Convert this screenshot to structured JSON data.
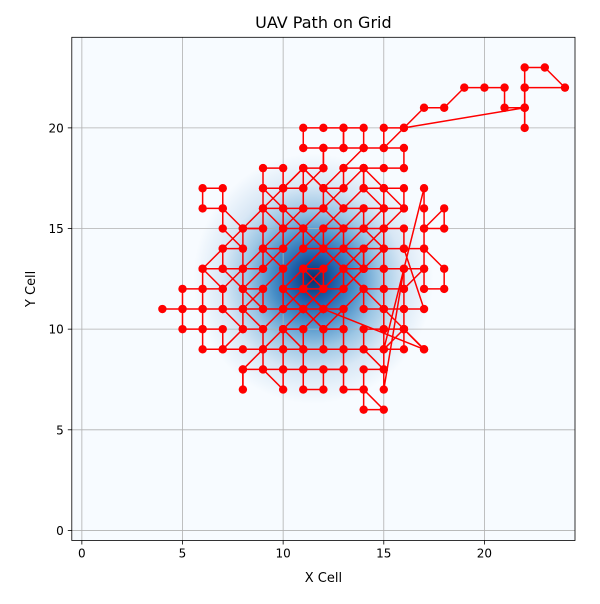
{
  "chart_data": {
    "type": "scatter",
    "title": "UAV Path on Grid",
    "xlabel": "X Cell",
    "ylabel": "Y Cell",
    "xlim": [
      -0.5,
      24.5
    ],
    "ylim": [
      -0.5,
      24.5
    ],
    "x_ticks": [
      0,
      5,
      10,
      15,
      20
    ],
    "y_ticks": [
      0,
      5,
      10,
      15,
      20
    ],
    "grid": true,
    "background": "density heatmap (Blues colormap) centred near cell (11.5, 12.5)",
    "heatmap_center": [
      11.5,
      12.5
    ],
    "colors": {
      "path": "#ff0000",
      "grid": "#b0b0b0",
      "heatmap_low": "#f7fbff",
      "heatmap_high": "#08306b"
    },
    "series": [
      {
        "points": [
          [
            4,
            11
          ],
          [
            5,
            11
          ],
          [
            5,
            12
          ],
          [
            6,
            12
          ],
          [
            6,
            13
          ],
          [
            7,
            13
          ],
          [
            7,
            14
          ],
          [
            8,
            14
          ],
          [
            8,
            15
          ],
          [
            9,
            15
          ],
          [
            9,
            16
          ],
          [
            10,
            16
          ],
          [
            10,
            17
          ],
          [
            11,
            17
          ],
          [
            11,
            18
          ],
          [
            12,
            18
          ],
          [
            12,
            19
          ],
          [
            13,
            19
          ],
          [
            13,
            20
          ],
          [
            14,
            20
          ],
          [
            14,
            19
          ],
          [
            15,
            19
          ],
          [
            15,
            20
          ],
          [
            16,
            20
          ],
          [
            17,
            21
          ],
          [
            18,
            21
          ],
          [
            19,
            22
          ],
          [
            20,
            22
          ],
          [
            21,
            22
          ],
          [
            21,
            21
          ],
          [
            22,
            21
          ],
          [
            22,
            22
          ],
          [
            22,
            23
          ],
          [
            23,
            23
          ],
          [
            24,
            22
          ],
          [
            22,
            22
          ],
          [
            22,
            21
          ],
          [
            22,
            20
          ],
          [
            22,
            21
          ],
          [
            16,
            20
          ],
          [
            15,
            19
          ],
          [
            16,
            19
          ],
          [
            16,
            18
          ],
          [
            15,
            18
          ],
          [
            14,
            18
          ],
          [
            14,
            17
          ],
          [
            15,
            17
          ],
          [
            16,
            17
          ],
          [
            16,
            16
          ],
          [
            15,
            16
          ],
          [
            15,
            15
          ],
          [
            16,
            15
          ],
          [
            16,
            14
          ],
          [
            15,
            14
          ],
          [
            15,
            13
          ],
          [
            16,
            13
          ],
          [
            16,
            12
          ],
          [
            15,
            12
          ],
          [
            15,
            11
          ],
          [
            16,
            11
          ],
          [
            16,
            10
          ],
          [
            15,
            10
          ],
          [
            15,
            9
          ],
          [
            16,
            9
          ],
          [
            16,
            10
          ],
          [
            17,
            9
          ],
          [
            16,
            10
          ],
          [
            15,
            9
          ],
          [
            17,
            17
          ],
          [
            17,
            16
          ],
          [
            17,
            15
          ],
          [
            18,
            15
          ],
          [
            18,
            16
          ],
          [
            17,
            15
          ],
          [
            17,
            14
          ],
          [
            18,
            13
          ],
          [
            18,
            12
          ],
          [
            17,
            12
          ],
          [
            17,
            13
          ],
          [
            17,
            14
          ],
          [
            16,
            14
          ],
          [
            17,
            11
          ],
          [
            16,
            11
          ],
          [
            16,
            12
          ],
          [
            17,
            13
          ],
          [
            16,
            13
          ],
          [
            15,
            7
          ],
          [
            15,
            8
          ],
          [
            14,
            8
          ],
          [
            14,
            7
          ],
          [
            15,
            6
          ],
          [
            14,
            6
          ],
          [
            14,
            7
          ],
          [
            13,
            7
          ],
          [
            13,
            8
          ],
          [
            12,
            8
          ],
          [
            12,
            7
          ],
          [
            11,
            7
          ],
          [
            11,
            8
          ],
          [
            10,
            8
          ],
          [
            10,
            7
          ],
          [
            9,
            8
          ],
          [
            8,
            8
          ],
          [
            8,
            7
          ],
          [
            8,
            8
          ],
          [
            9,
            9
          ],
          [
            8,
            9
          ],
          [
            7,
            9
          ],
          [
            6,
            9
          ],
          [
            6,
            10
          ],
          [
            5,
            10
          ],
          [
            5,
            11
          ],
          [
            6,
            11
          ],
          [
            6,
            10
          ],
          [
            7,
            10
          ],
          [
            7,
            9
          ],
          [
            8,
            10
          ],
          [
            7,
            11
          ],
          [
            6,
            11
          ],
          [
            6,
            12
          ],
          [
            7,
            12
          ],
          [
            7,
            11
          ],
          [
            8,
            11
          ],
          [
            8,
            12
          ],
          [
            7,
            13
          ],
          [
            8,
            13
          ],
          [
            8,
            14
          ],
          [
            7,
            15
          ],
          [
            7,
            16
          ],
          [
            6,
            16
          ],
          [
            6,
            17
          ],
          [
            7,
            17
          ],
          [
            7,
            16
          ],
          [
            8,
            15
          ],
          [
            9,
            15
          ],
          [
            9,
            14
          ],
          [
            10,
            14
          ],
          [
            10,
            15
          ],
          [
            9,
            16
          ],
          [
            9,
            17
          ],
          [
            9,
            18
          ],
          [
            10,
            18
          ],
          [
            10,
            17
          ],
          [
            11,
            17
          ],
          [
            11,
            16
          ],
          [
            12,
            16
          ],
          [
            12,
            17
          ],
          [
            13,
            17
          ],
          [
            13,
            18
          ],
          [
            14,
            18
          ],
          [
            14,
            17
          ],
          [
            15,
            17
          ],
          [
            15,
            16
          ],
          [
            14,
            16
          ],
          [
            14,
            15
          ],
          [
            15,
            15
          ],
          [
            15,
            14
          ],
          [
            14,
            14
          ],
          [
            14,
            13
          ],
          [
            15,
            13
          ],
          [
            15,
            12
          ],
          [
            14,
            12
          ],
          [
            14,
            11
          ],
          [
            15,
            11
          ],
          [
            15,
            10
          ],
          [
            14,
            10
          ],
          [
            14,
            9
          ],
          [
            15,
            9
          ],
          [
            15,
            8
          ],
          [
            14,
            9
          ],
          [
            13,
            9
          ],
          [
            13,
            10
          ],
          [
            12,
            10
          ],
          [
            12,
            9
          ],
          [
            11,
            9
          ],
          [
            11,
            10
          ],
          [
            10,
            10
          ],
          [
            10,
            9
          ],
          [
            9,
            9
          ],
          [
            9,
            10
          ],
          [
            8,
            10
          ],
          [
            8,
            11
          ],
          [
            9,
            11
          ],
          [
            9,
            12
          ],
          [
            8,
            12
          ],
          [
            8,
            13
          ],
          [
            9,
            13
          ],
          [
            9,
            14
          ],
          [
            10,
            13
          ],
          [
            10,
            12
          ],
          [
            11,
            12
          ],
          [
            11,
            13
          ],
          [
            12,
            13
          ],
          [
            12,
            12
          ],
          [
            13,
            12
          ],
          [
            13,
            13
          ],
          [
            14,
            13
          ],
          [
            14,
            14
          ],
          [
            13,
            14
          ],
          [
            13,
            15
          ],
          [
            12,
            15
          ],
          [
            12,
            14
          ],
          [
            11,
            14
          ],
          [
            11,
            15
          ],
          [
            10,
            15
          ],
          [
            10,
            16
          ],
          [
            11,
            16
          ],
          [
            11,
            17
          ],
          [
            12,
            18
          ],
          [
            12,
            19
          ],
          [
            11,
            19
          ],
          [
            11,
            20
          ],
          [
            12,
            20
          ],
          [
            13,
            20
          ],
          [
            13,
            19
          ],
          [
            14,
            19
          ],
          [
            13,
            18
          ],
          [
            12,
            17
          ],
          [
            11,
            18
          ],
          [
            10,
            17
          ],
          [
            9,
            17
          ],
          [
            10,
            16
          ],
          [
            11,
            15
          ],
          [
            12,
            14
          ],
          [
            13,
            13
          ],
          [
            14,
            12
          ],
          [
            15,
            11
          ],
          [
            16,
            10
          ],
          [
            17,
            9
          ],
          [
            12,
            11
          ],
          [
            13,
            11
          ],
          [
            13,
            10
          ],
          [
            12,
            10
          ],
          [
            11,
            11
          ],
          [
            10,
            11
          ],
          [
            10,
            12
          ],
          [
            11,
            12
          ],
          [
            12,
            11
          ],
          [
            11,
            10
          ],
          [
            10,
            10
          ],
          [
            11,
            9
          ],
          [
            12,
            9
          ],
          [
            13,
            9
          ],
          [
            13,
            8
          ],
          [
            12,
            8
          ],
          [
            11,
            8
          ],
          [
            11,
            9
          ],
          [
            10,
            9
          ],
          [
            10,
            8
          ],
          [
            9,
            8
          ],
          [
            9,
            9
          ],
          [
            10,
            10
          ],
          [
            11,
            11
          ],
          [
            12,
            12
          ],
          [
            13,
            13
          ],
          [
            14,
            14
          ],
          [
            15,
            15
          ],
          [
            16,
            16
          ],
          [
            15,
            17
          ],
          [
            14,
            18
          ],
          [
            13,
            17
          ],
          [
            12,
            16
          ],
          [
            11,
            15
          ],
          [
            10,
            14
          ],
          [
            9,
            13
          ],
          [
            8,
            12
          ],
          [
            9,
            11
          ],
          [
            10,
            11
          ],
          [
            11,
            12
          ],
          [
            12,
            13
          ],
          [
            13,
            14
          ],
          [
            14,
            15
          ],
          [
            15,
            16
          ],
          [
            14,
            17
          ],
          [
            13,
            16
          ],
          [
            12,
            15
          ],
          [
            11,
            14
          ],
          [
            10,
            13
          ],
          [
            9,
            12
          ],
          [
            8,
            11
          ],
          [
            9,
            10
          ],
          [
            10,
            11
          ],
          [
            11,
            11
          ],
          [
            12,
            11
          ],
          [
            13,
            12
          ],
          [
            14,
            13
          ],
          [
            15,
            14
          ],
          [
            14,
            15
          ],
          [
            13,
            15
          ],
          [
            12,
            16
          ],
          [
            11,
            16
          ],
          [
            10,
            15
          ],
          [
            9,
            14
          ],
          [
            8,
            13
          ],
          [
            7,
            12
          ],
          [
            6,
            13
          ],
          [
            7,
            14
          ],
          [
            8,
            15
          ],
          [
            9,
            16
          ],
          [
            10,
            17
          ],
          [
            11,
            18
          ],
          [
            12,
            17
          ],
          [
            13,
            16
          ],
          [
            14,
            16
          ],
          [
            13,
            15
          ],
          [
            12,
            14
          ],
          [
            11,
            13
          ],
          [
            10,
            12
          ],
          [
            11,
            11
          ],
          [
            12,
            10
          ],
          [
            13,
            11
          ],
          [
            14,
            12
          ],
          [
            13,
            13
          ],
          [
            12,
            12
          ],
          [
            11,
            13
          ],
          [
            12,
            14
          ],
          [
            13,
            14
          ],
          [
            14,
            13
          ],
          [
            13,
            12
          ],
          [
            12,
            11
          ],
          [
            11,
            12
          ],
          [
            12,
            12
          ]
        ]
      }
    ]
  }
}
